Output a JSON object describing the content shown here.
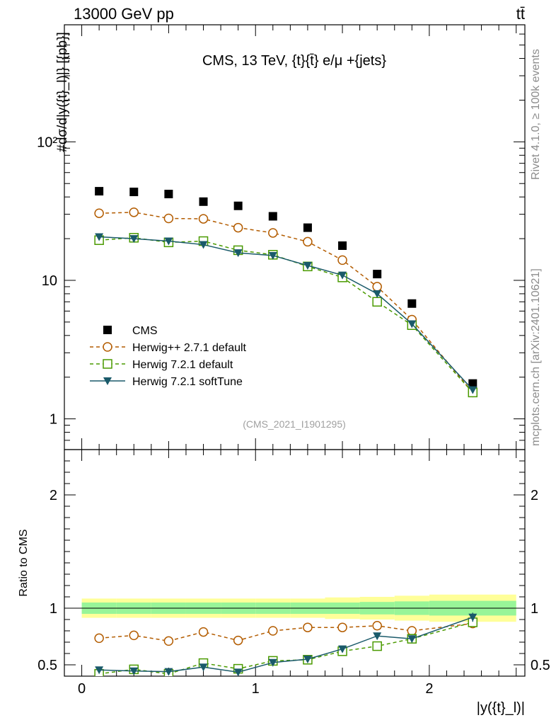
{
  "header": {
    "left": "13000 GeV pp",
    "right": "tt̄",
    "side_top": "Rivet 4.1.0, ≥ 100k events",
    "side_bottom": "mcplots.cern.ch [arXiv:2401.10621]"
  },
  "chart_data": [
    {
      "type": "line",
      "panel": "main",
      "title": "CMS, 13 TeV, {t}{t̄} e/μ +{jets}",
      "watermark": "(CMS_2021_I1901295)",
      "ylabel": "#dσ/d|y({t}_l)|} [{pb}]",
      "yscale": "log",
      "xlim": [
        -0.1,
        2.55
      ],
      "ylim": [
        0.6,
        700
      ],
      "y_ticks": [
        {
          "v": 1,
          "label": "1"
        },
        {
          "v": 10,
          "label": "10"
        },
        {
          "v": 100,
          "label": "10²"
        }
      ],
      "x": [
        0.1,
        0.3,
        0.5,
        0.7,
        0.9,
        1.1,
        1.3,
        1.5,
        1.7,
        1.9,
        2.25
      ],
      "series": [
        {
          "name": "CMS",
          "color": "#000000",
          "marker": "square",
          "line": "none",
          "values": [
            44,
            43.5,
            42,
            37,
            34.5,
            29,
            24,
            17.8,
            11.1,
            6.8,
            1.8
          ]
        },
        {
          "name": "Herwig++ 2.7.1 default",
          "color": "#b35c00",
          "marker": "circle-open",
          "line": "dashed",
          "values": [
            30.5,
            31,
            28,
            27.8,
            24,
            22,
            19,
            14,
            9,
            5.2,
            1.55
          ]
        },
        {
          "name": "Herwig 7.2.1 default",
          "color": "#4a9a00",
          "marker": "square-open",
          "line": "dashed",
          "values": [
            19.5,
            20.3,
            18.8,
            19.2,
            16.5,
            15.3,
            12.6,
            10.5,
            7.0,
            4.75,
            1.55
          ]
        },
        {
          "name": "Herwig 7.2.1 softTune",
          "color": "#1a5a6a",
          "marker": "triangle-down",
          "line": "solid",
          "values": [
            20.6,
            20,
            19.2,
            18.1,
            15.8,
            15.1,
            12.8,
            10.9,
            8.0,
            4.85,
            1.62
          ]
        }
      ]
    },
    {
      "type": "line",
      "panel": "ratio",
      "ylabel": "Ratio to CMS",
      "xlabel": "|y({t}_l)|",
      "xlim": [
        -0.1,
        2.55
      ],
      "ylim": [
        0.4,
        2.4
      ],
      "x_ticks": [
        {
          "v": 0,
          "label": "0"
        },
        {
          "v": 1,
          "label": "1"
        },
        {
          "v": 2,
          "label": "2"
        }
      ],
      "y_ticks": [
        {
          "v": 0.5,
          "label": "0.5"
        },
        {
          "v": 1,
          "label": "1"
        },
        {
          "v": 2,
          "label": "2"
        }
      ],
      "band_edges": [
        0,
        0.2,
        0.4,
        0.6,
        0.8,
        1.0,
        1.2,
        1.4,
        1.6,
        1.8,
        2.0,
        2.5
      ],
      "band_stat": [
        0.05,
        0.05,
        0.05,
        0.05,
        0.05,
        0.05,
        0.05,
        0.05,
        0.055,
        0.06,
        0.065
      ],
      "band_total": [
        0.085,
        0.085,
        0.085,
        0.085,
        0.085,
        0.085,
        0.085,
        0.095,
        0.1,
        0.11,
        0.12
      ],
      "x": [
        0.1,
        0.3,
        0.5,
        0.7,
        0.9,
        1.1,
        1.3,
        1.5,
        1.7,
        1.9,
        2.25
      ],
      "series": [
        {
          "name": "Herwig++ 2.7.1 default",
          "values": [
            0.735,
            0.76,
            0.71,
            0.79,
            0.715,
            0.8,
            0.83,
            0.83,
            0.845,
            0.8,
            0.865
          ],
          "errors": [
            0.008,
            0.008,
            0.008,
            0.01,
            0.01,
            0.012,
            0.015,
            0.018,
            0.025,
            0.03,
            0.03
          ]
        },
        {
          "name": "Herwig 7.2.1 default",
          "values": [
            0.42,
            0.46,
            0.42,
            0.515,
            0.465,
            0.535,
            0.545,
            0.62,
            0.665,
            0.73,
            0.875
          ],
          "errors": [
            0.01,
            0.01,
            0.01,
            0.012,
            0.012,
            0.015,
            0.018,
            0.02,
            0.025,
            0.03,
            0.04
          ]
        },
        {
          "name": "Herwig 7.2.1 softTune",
          "values": [
            0.455,
            0.445,
            0.44,
            0.48,
            0.435,
            0.52,
            0.55,
            0.64,
            0.755,
            0.73,
            0.92
          ],
          "errors": [
            0.01,
            0.012,
            0.012,
            0.018,
            0.015,
            0.02,
            0.02,
            0.025,
            0.03,
            0.03,
            0.04
          ]
        }
      ]
    }
  ]
}
